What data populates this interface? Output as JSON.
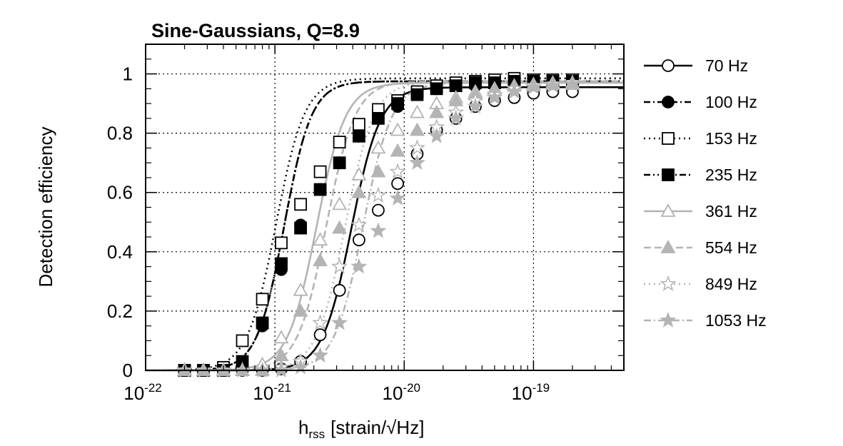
{
  "chart_data": {
    "type": "line",
    "title": "Sine-Gaussians, Q=8.9",
    "xlabel": {
      "main": "h",
      "sub": "rss",
      "units": "[strain/√Hz]"
    },
    "ylabel": "Detection efficiency",
    "x_scale": "log",
    "xlim": [
      1e-22,
      5e-19
    ],
    "ylim": [
      0,
      1.1
    ],
    "grid": true,
    "legend_position": "right",
    "x_ticks": [
      {
        "value": 1e-22,
        "base": "10",
        "exp": "-22"
      },
      {
        "value": 1e-21,
        "base": "10",
        "exp": "-21"
      },
      {
        "value": 1e-20,
        "base": "10",
        "exp": "-20"
      },
      {
        "value": 1e-19,
        "base": "10",
        "exp": "-19"
      }
    ],
    "y_ticks": [
      {
        "value": 0,
        "label": "0"
      },
      {
        "value": 0.2,
        "label": "0.2"
      },
      {
        "value": 0.4,
        "label": "0.4"
      },
      {
        "value": 0.6,
        "label": "0.6"
      },
      {
        "value": 0.8,
        "label": "0.8"
      },
      {
        "value": 1,
        "label": "1"
      }
    ],
    "x_points": [
      2e-22,
      2.8e-22,
      4e-22,
      5.6e-22,
      8e-22,
      1.12e-21,
      1.58e-21,
      2.24e-21,
      3.16e-21,
      4.47e-21,
      6.3e-21,
      8.9e-21,
      1.26e-20,
      1.78e-20,
      2.51e-20,
      3.55e-20,
      5e-20,
      7.1e-20,
      1e-19,
      1.41e-19,
      2e-19
    ],
    "series": [
      {
        "name": "70 Hz",
        "color": "#000000",
        "dash": "",
        "marker": "circle-open",
        "values": [
          0,
          0,
          0,
          0,
          0,
          0.005,
          0.03,
          0.12,
          0.27,
          0.44,
          0.54,
          0.63,
          0.73,
          0.81,
          0.85,
          0.89,
          0.91,
          0.92,
          0.935,
          0.94,
          0.94
        ],
        "fit": {
          "x50": 3.9e-21,
          "width": 0.19,
          "plateau": 0.955
        }
      },
      {
        "name": "100 Hz",
        "color": "#000000",
        "dash": "9 4 2 4",
        "marker": "circle-filled",
        "values": [
          0,
          0,
          0,
          0.01,
          0.15,
          0.34,
          0.49,
          0.61,
          0.7,
          0.79,
          0.85,
          0.89,
          0.93,
          0.95,
          0.96,
          0.96,
          0.965,
          0.97,
          0.97,
          0.97,
          0.97
        ],
        "fit": {
          "x50": 1.18e-21,
          "width": 0.18,
          "plateau": 0.975
        }
      },
      {
        "name": "153 Hz",
        "color": "#000000",
        "dash": "2 5",
        "marker": "square-open",
        "values": [
          0,
          0,
          0.01,
          0.1,
          0.24,
          0.43,
          0.56,
          0.67,
          0.77,
          0.83,
          0.88,
          0.91,
          0.94,
          0.96,
          0.97,
          0.975,
          0.98,
          0.985,
          0.98,
          0.98,
          0.98
        ],
        "fit": {
          "x50": 1.02e-21,
          "width": 0.19,
          "plateau": 0.985
        }
      },
      {
        "name": "235 Hz",
        "color": "#000000",
        "dash": "9 4 2 4 2 4",
        "marker": "square-filled",
        "values": [
          0,
          0,
          0,
          0.03,
          0.16,
          0.36,
          0.48,
          0.61,
          0.7,
          0.79,
          0.85,
          0.9,
          0.93,
          0.95,
          0.96,
          0.97,
          0.97,
          0.975,
          0.975,
          0.975,
          0.975
        ],
        "fit": {
          "x50": 1.18e-21,
          "width": 0.18,
          "plateau": 0.975
        }
      },
      {
        "name": "361 Hz",
        "color": "#b4b4b4",
        "dash": "",
        "marker": "triangle-open",
        "values": [
          0,
          0,
          0,
          0,
          0.02,
          0.11,
          0.27,
          0.44,
          0.56,
          0.66,
          0.75,
          0.81,
          0.87,
          0.9,
          0.92,
          0.94,
          0.95,
          0.96,
          0.96,
          0.965,
          0.965
        ],
        "fit": {
          "x50": 2.1e-21,
          "width": 0.19,
          "plateau": 0.97
        }
      },
      {
        "name": "554 Hz",
        "color": "#b4b4b4",
        "dash": "10 5",
        "marker": "triangle-filled",
        "values": [
          0,
          0,
          0,
          0,
          0,
          0.05,
          0.2,
          0.37,
          0.48,
          0.6,
          0.67,
          0.74,
          0.81,
          0.87,
          0.91,
          0.93,
          0.95,
          0.96,
          0.965,
          0.97,
          0.97
        ],
        "fit": {
          "x50": 2.5e-21,
          "width": 0.19,
          "plateau": 0.975
        }
      },
      {
        "name": "849 Hz",
        "color": "#b4b4b4",
        "dash": "2 5",
        "marker": "star-open",
        "values": [
          0,
          0,
          0,
          0,
          0,
          0.01,
          0.03,
          0.16,
          0.35,
          0.49,
          0.59,
          0.67,
          0.75,
          0.82,
          0.87,
          0.91,
          0.93,
          0.95,
          0.96,
          0.965,
          0.97
        ],
        "fit": {
          "x50": 3.5e-21,
          "width": 0.19,
          "plateau": 0.975
        }
      },
      {
        "name": "1053 Hz",
        "color": "#b4b4b4",
        "dash": "10 4 2 4",
        "marker": "star-filled",
        "values": [
          0,
          0,
          0,
          0,
          0,
          0,
          0.01,
          0.05,
          0.16,
          0.35,
          0.47,
          0.58,
          0.7,
          0.79,
          0.85,
          0.89,
          0.92,
          0.94,
          0.955,
          0.96,
          0.965
        ],
        "fit": {
          "x50": 4.8e-21,
          "width": 0.19,
          "plateau": 0.97
        }
      }
    ]
  }
}
